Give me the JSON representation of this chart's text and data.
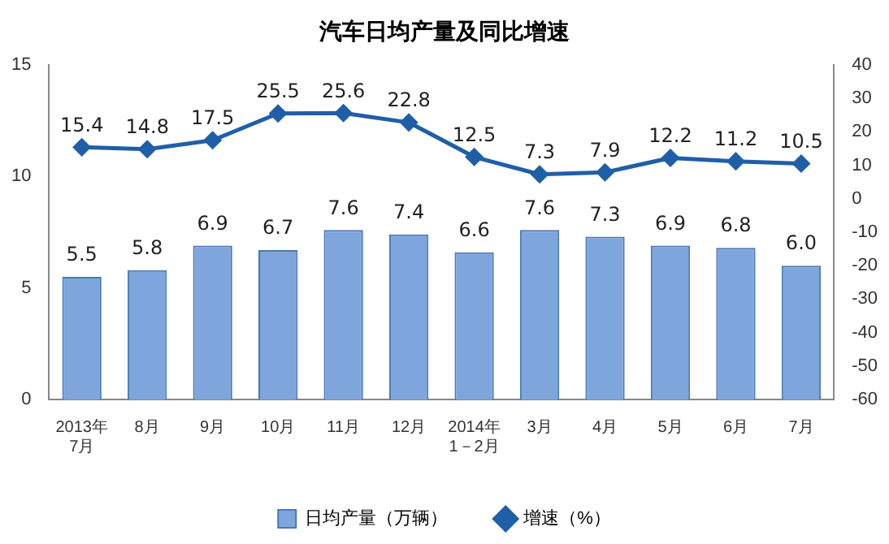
{
  "chart_data": {
    "type": "bar",
    "title": "汽车日均产量及同比增速",
    "categories": [
      "2013年\n7月",
      "8月",
      "9月",
      "10月",
      "11月",
      "12月",
      "2014年\n1－2月",
      "3月",
      "4月",
      "5月",
      "6月",
      "7月"
    ],
    "series": [
      {
        "name": "日均产量（万辆）",
        "color": "#7fa6dc",
        "values": [
          5.5,
          5.8,
          6.9,
          6.7,
          7.6,
          7.4,
          6.6,
          7.6,
          7.3,
          6.9,
          6.8,
          6.0
        ],
        "value_labels": [
          "5.5",
          "5.8",
          "6.9",
          "6.7",
          "7.6",
          "7.4",
          "6.6",
          "7.6",
          "7.3",
          "6.9",
          "6.8",
          "6.0"
        ]
      },
      {
        "name": "增速（%）",
        "type": "line",
        "axis": "y2",
        "color": "#1f5fa8",
        "values": [
          15.4,
          14.8,
          17.5,
          25.5,
          25.6,
          22.8,
          12.5,
          7.3,
          7.9,
          12.2,
          11.2,
          10.5
        ],
        "value_labels": [
          "15.4",
          "14.8",
          "17.5",
          "25.5",
          "25.6",
          "22.8",
          "12.5",
          "7.3",
          "7.9",
          "12.2",
          "11.2",
          "10.5"
        ]
      }
    ],
    "ylim": [
      0,
      15
    ],
    "yticks": [
      0,
      5,
      10,
      15
    ],
    "y2lim": [
      -60,
      40
    ],
    "y2ticks": [
      -60,
      -50,
      -40,
      -30,
      -20,
      -10,
      0,
      10,
      20,
      30,
      40
    ],
    "marker": "diamond",
    "legend": "bottom",
    "grid": false
  }
}
